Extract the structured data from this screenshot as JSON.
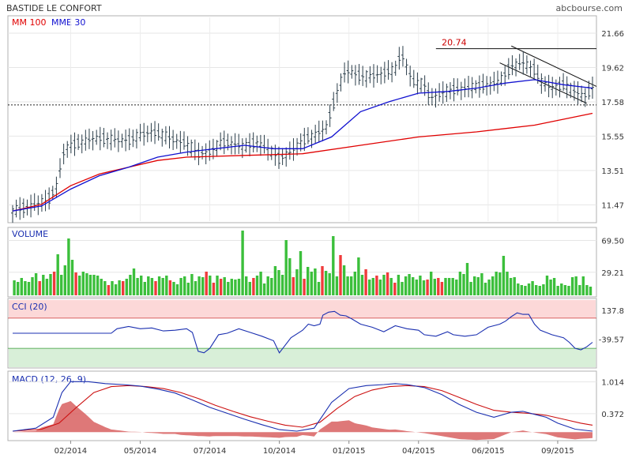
{
  "header": {
    "title": "BASTIDE LE CONFORT",
    "source": "abcbourse.com",
    "legend_mm": "MM 100",
    "legend_mme": "MME 30"
  },
  "colors": {
    "price": "#2b3e4a",
    "mm100": "#e00000",
    "mme30": "#1010d0",
    "vol_up": "#3bbf3b",
    "vol_down": "#ef3b3b",
    "cci_band_high": "#fcd8d8",
    "cci_band_low": "#d8efd8",
    "cci_line": "#1a2fb0",
    "macd_line": "#1a2fb0",
    "signal_line": "#cc1010",
    "hist_fill": "#d86060"
  },
  "chart_data": [
    {
      "type": "line",
      "panel": "price",
      "y_ticks": [
        "21.66",
        "19.62",
        "17.58",
        "15.55",
        "13.51",
        "11.47"
      ],
      "ylim": [
        10.5,
        22.6
      ],
      "x_ticks": [
        "02/2014",
        "05/2014",
        "07/2014",
        "10/2014",
        "01/2015",
        "04/2015",
        "06/2015",
        "09/2015"
      ],
      "x_tick_positions": [
        0.1,
        0.22,
        0.34,
        0.46,
        0.58,
        0.7,
        0.82,
        0.94
      ],
      "annotation_value": "20.74",
      "reference_level": 17.4,
      "price_samples": [
        [
          0.0,
          11.1
        ],
        [
          0.02,
          11.3
        ],
        [
          0.04,
          11.5
        ],
        [
          0.06,
          11.7
        ],
        [
          0.075,
          12.5
        ],
        [
          0.09,
          14.8
        ],
        [
          0.1,
          15.0
        ],
        [
          0.12,
          15.2
        ],
        [
          0.14,
          15.4
        ],
        [
          0.16,
          15.4
        ],
        [
          0.18,
          15.3
        ],
        [
          0.2,
          15.3
        ],
        [
          0.22,
          15.6
        ],
        [
          0.24,
          15.8
        ],
        [
          0.26,
          15.6
        ],
        [
          0.28,
          15.3
        ],
        [
          0.3,
          15.1
        ],
        [
          0.32,
          14.5
        ],
        [
          0.34,
          14.6
        ],
        [
          0.36,
          15.2
        ],
        [
          0.38,
          15.1
        ],
        [
          0.4,
          14.9
        ],
        [
          0.42,
          15.2
        ],
        [
          0.44,
          14.8
        ],
        [
          0.46,
          14.2
        ],
        [
          0.48,
          14.6
        ],
        [
          0.5,
          15.3
        ],
        [
          0.52,
          15.6
        ],
        [
          0.54,
          16.0
        ],
        [
          0.56,
          18.2
        ],
        [
          0.57,
          19.2
        ],
        [
          0.58,
          19.4
        ],
        [
          0.6,
          19.1
        ],
        [
          0.62,
          19.1
        ],
        [
          0.64,
          19.3
        ],
        [
          0.66,
          19.5
        ],
        [
          0.67,
          20.5
        ],
        [
          0.69,
          18.8
        ],
        [
          0.71,
          18.6
        ],
        [
          0.72,
          17.8
        ],
        [
          0.74,
          18.1
        ],
        [
          0.76,
          18.3
        ],
        [
          0.78,
          18.4
        ],
        [
          0.8,
          18.5
        ],
        [
          0.82,
          18.6
        ],
        [
          0.84,
          18.8
        ],
        [
          0.86,
          19.7
        ],
        [
          0.88,
          19.9
        ],
        [
          0.9,
          19.5
        ],
        [
          0.91,
          18.8
        ],
        [
          0.93,
          18.4
        ],
        [
          0.95,
          18.6
        ],
        [
          0.97,
          18.2
        ],
        [
          0.985,
          17.9
        ],
        [
          1.0,
          18.4
        ]
      ],
      "mm100_samples": [
        [
          0.0,
          11.1
        ],
        [
          0.05,
          11.5
        ],
        [
          0.1,
          12.6
        ],
        [
          0.15,
          13.3
        ],
        [
          0.2,
          13.7
        ],
        [
          0.25,
          14.1
        ],
        [
          0.3,
          14.3
        ],
        [
          0.4,
          14.4
        ],
        [
          0.5,
          14.5
        ],
        [
          0.6,
          15.0
        ],
        [
          0.7,
          15.5
        ],
        [
          0.8,
          15.8
        ],
        [
          0.9,
          16.2
        ],
        [
          1.0,
          16.9
        ]
      ],
      "mme30_samples": [
        [
          0.0,
          11.1
        ],
        [
          0.05,
          11.4
        ],
        [
          0.1,
          12.4
        ],
        [
          0.15,
          13.2
        ],
        [
          0.2,
          13.7
        ],
        [
          0.25,
          14.3
        ],
        [
          0.3,
          14.6
        ],
        [
          0.35,
          14.8
        ],
        [
          0.4,
          15.0
        ],
        [
          0.45,
          14.8
        ],
        [
          0.5,
          14.8
        ],
        [
          0.55,
          15.5
        ],
        [
          0.6,
          17.0
        ],
        [
          0.65,
          17.6
        ],
        [
          0.7,
          18.1
        ],
        [
          0.75,
          18.2
        ],
        [
          0.8,
          18.4
        ],
        [
          0.85,
          18.7
        ],
        [
          0.9,
          18.9
        ],
        [
          0.95,
          18.6
        ],
        [
          1.0,
          18.4
        ]
      ]
    },
    {
      "type": "bar",
      "panel": "volume",
      "title": "VOLUME",
      "y_ticks": [
        "69.50",
        "29.21"
      ],
      "ylim": [
        0,
        84
      ],
      "down_bars": [
        7,
        11,
        17,
        26,
        30,
        39,
        43,
        53,
        55,
        57,
        66,
        77,
        80,
        85,
        90,
        97,
        100,
        103,
        105,
        114,
        117,
        118
      ],
      "values": [
        19,
        17,
        22,
        18,
        17,
        23,
        28,
        18,
        26,
        21,
        27,
        30,
        52,
        26,
        38,
        72,
        45,
        29,
        25,
        30,
        28,
        26,
        26,
        25,
        21,
        18,
        13,
        18,
        14,
        19,
        18,
        21,
        26,
        34,
        22,
        25,
        17,
        24,
        22,
        18,
        24,
        22,
        25,
        19,
        17,
        14,
        22,
        24,
        16,
        27,
        18,
        24,
        23,
        30,
        25,
        16,
        25,
        21,
        23,
        17,
        21,
        20,
        21,
        82,
        24,
        17,
        22,
        25,
        30,
        15,
        24,
        22,
        37,
        32,
        26,
        70,
        47,
        23,
        33,
        56,
        21,
        36,
        30,
        34,
        17,
        37,
        31,
        28,
        75,
        24,
        51,
        38,
        24,
        24,
        30,
        48,
        26,
        33,
        20,
        22,
        25,
        20,
        26,
        29,
        22,
        16,
        26,
        17,
        24,
        27,
        23,
        20,
        25,
        19,
        20,
        30,
        21,
        22,
        17,
        22,
        22,
        22,
        20,
        30,
        27,
        41,
        17,
        24,
        23,
        28,
        16,
        20,
        24,
        30,
        29,
        50,
        30,
        22,
        23,
        15,
        13,
        12,
        15,
        18,
        13,
        12,
        14,
        25,
        20,
        22,
        12,
        15,
        13,
        12,
        23,
        24,
        13,
        24,
        13,
        11
      ]
    },
    {
      "type": "line",
      "panel": "cci",
      "title": "CCI (20)",
      "y_ticks": [
        "137.8",
        "-39.57"
      ],
      "ylim": [
        -220,
        220
      ],
      "band": [
        -100,
        100
      ],
      "samples": [
        [
          0.0,
          0
        ],
        [
          0.17,
          0
        ],
        [
          0.18,
          30
        ],
        [
          0.2,
          45
        ],
        [
          0.22,
          30
        ],
        [
          0.24,
          35
        ],
        [
          0.26,
          15
        ],
        [
          0.28,
          20
        ],
        [
          0.3,
          30
        ],
        [
          0.31,
          5
        ],
        [
          0.32,
          -120
        ],
        [
          0.33,
          -130
        ],
        [
          0.34,
          -100
        ],
        [
          0.355,
          -10
        ],
        [
          0.37,
          0
        ],
        [
          0.39,
          30
        ],
        [
          0.41,
          5
        ],
        [
          0.43,
          -20
        ],
        [
          0.45,
          -50
        ],
        [
          0.46,
          -130
        ],
        [
          0.48,
          -30
        ],
        [
          0.5,
          20
        ],
        [
          0.51,
          60
        ],
        [
          0.52,
          50
        ],
        [
          0.53,
          60
        ],
        [
          0.535,
          120
        ],
        [
          0.545,
          140
        ],
        [
          0.555,
          145
        ],
        [
          0.565,
          120
        ],
        [
          0.575,
          115
        ],
        [
          0.585,
          95
        ],
        [
          0.6,
          60
        ],
        [
          0.62,
          40
        ],
        [
          0.64,
          10
        ],
        [
          0.66,
          50
        ],
        [
          0.68,
          30
        ],
        [
          0.7,
          20
        ],
        [
          0.71,
          -10
        ],
        [
          0.73,
          -20
        ],
        [
          0.75,
          10
        ],
        [
          0.76,
          -10
        ],
        [
          0.78,
          -20
        ],
        [
          0.8,
          -10
        ],
        [
          0.82,
          40
        ],
        [
          0.84,
          60
        ],
        [
          0.85,
          80
        ],
        [
          0.86,
          110
        ],
        [
          0.87,
          135
        ],
        [
          0.88,
          125
        ],
        [
          0.89,
          125
        ],
        [
          0.9,
          60
        ],
        [
          0.91,
          20
        ],
        [
          0.93,
          -10
        ],
        [
          0.95,
          -30
        ],
        [
          0.96,
          -60
        ],
        [
          0.97,
          -100
        ],
        [
          0.98,
          -110
        ],
        [
          0.99,
          -90
        ],
        [
          1.0,
          -60
        ]
      ]
    },
    {
      "type": "line",
      "panel": "macd",
      "title": "MACD (12, 26, 9)",
      "y_ticks": [
        "1.014",
        "0.372"
      ],
      "ylim": [
        -0.14,
        1.2
      ],
      "macd_samples": [
        [
          0.0,
          0.02
        ],
        [
          0.04,
          0.08
        ],
        [
          0.07,
          0.3
        ],
        [
          0.085,
          0.8
        ],
        [
          0.1,
          1.02
        ],
        [
          0.13,
          1.02
        ],
        [
          0.16,
          0.98
        ],
        [
          0.19,
          0.96
        ],
        [
          0.22,
          0.93
        ],
        [
          0.25,
          0.87
        ],
        [
          0.28,
          0.79
        ],
        [
          0.31,
          0.65
        ],
        [
          0.34,
          0.5
        ],
        [
          0.37,
          0.38
        ],
        [
          0.4,
          0.26
        ],
        [
          0.43,
          0.15
        ],
        [
          0.46,
          0.05
        ],
        [
          0.49,
          0.02
        ],
        [
          0.52,
          0.08
        ],
        [
          0.55,
          0.6
        ],
        [
          0.58,
          0.88
        ],
        [
          0.61,
          0.94
        ],
        [
          0.64,
          0.96
        ],
        [
          0.66,
          0.98
        ],
        [
          0.68,
          0.96
        ],
        [
          0.71,
          0.9
        ],
        [
          0.74,
          0.76
        ],
        [
          0.77,
          0.56
        ],
        [
          0.8,
          0.4
        ],
        [
          0.83,
          0.3
        ],
        [
          0.86,
          0.4
        ],
        [
          0.88,
          0.42
        ],
        [
          0.9,
          0.36
        ],
        [
          0.92,
          0.3
        ],
        [
          0.94,
          0.18
        ],
        [
          0.97,
          0.06
        ],
        [
          1.0,
          0.02
        ]
      ],
      "signal_samples": [
        [
          0.0,
          0.02
        ],
        [
          0.05,
          0.06
        ],
        [
          0.08,
          0.18
        ],
        [
          0.11,
          0.5
        ],
        [
          0.14,
          0.8
        ],
        [
          0.17,
          0.92
        ],
        [
          0.2,
          0.94
        ],
        [
          0.23,
          0.92
        ],
        [
          0.26,
          0.88
        ],
        [
          0.29,
          0.8
        ],
        [
          0.32,
          0.68
        ],
        [
          0.35,
          0.54
        ],
        [
          0.38,
          0.42
        ],
        [
          0.41,
          0.31
        ],
        [
          0.44,
          0.22
        ],
        [
          0.47,
          0.14
        ],
        [
          0.5,
          0.1
        ],
        [
          0.53,
          0.2
        ],
        [
          0.56,
          0.48
        ],
        [
          0.59,
          0.72
        ],
        [
          0.62,
          0.85
        ],
        [
          0.65,
          0.92
        ],
        [
          0.68,
          0.94
        ],
        [
          0.71,
          0.92
        ],
        [
          0.74,
          0.84
        ],
        [
          0.77,
          0.7
        ],
        [
          0.8,
          0.56
        ],
        [
          0.83,
          0.44
        ],
        [
          0.86,
          0.4
        ],
        [
          0.89,
          0.38
        ],
        [
          0.92,
          0.34
        ],
        [
          0.95,
          0.26
        ],
        [
          0.98,
          0.18
        ],
        [
          1.0,
          0.14
        ]
      ]
    }
  ]
}
